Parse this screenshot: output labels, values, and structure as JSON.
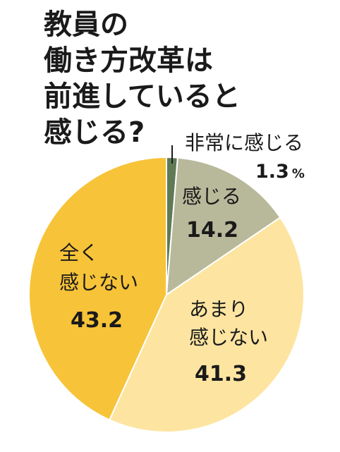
{
  "chart_data": {
    "type": "pie",
    "title_lines": [
      "教員の",
      "働き方改革は",
      "前進していると",
      "感じる?"
    ],
    "unit": "%",
    "slices": [
      {
        "name_lines": [
          "非常に感じる"
        ],
        "value": 1.3,
        "value_label": "1.3",
        "color": "#5f7a55"
      },
      {
        "name_lines": [
          "感じる"
        ],
        "value": 14.2,
        "value_label": "14.2",
        "color": "#b8b89b"
      },
      {
        "name_lines": [
          "あまり",
          "感じない"
        ],
        "value": 41.3,
        "value_label": "41.3",
        "color": "#fde5a1"
      },
      {
        "name_lines": [
          "全く",
          "感じない"
        ],
        "value": 43.2,
        "value_label": "43.2",
        "color": "#f7c338"
      }
    ]
  }
}
